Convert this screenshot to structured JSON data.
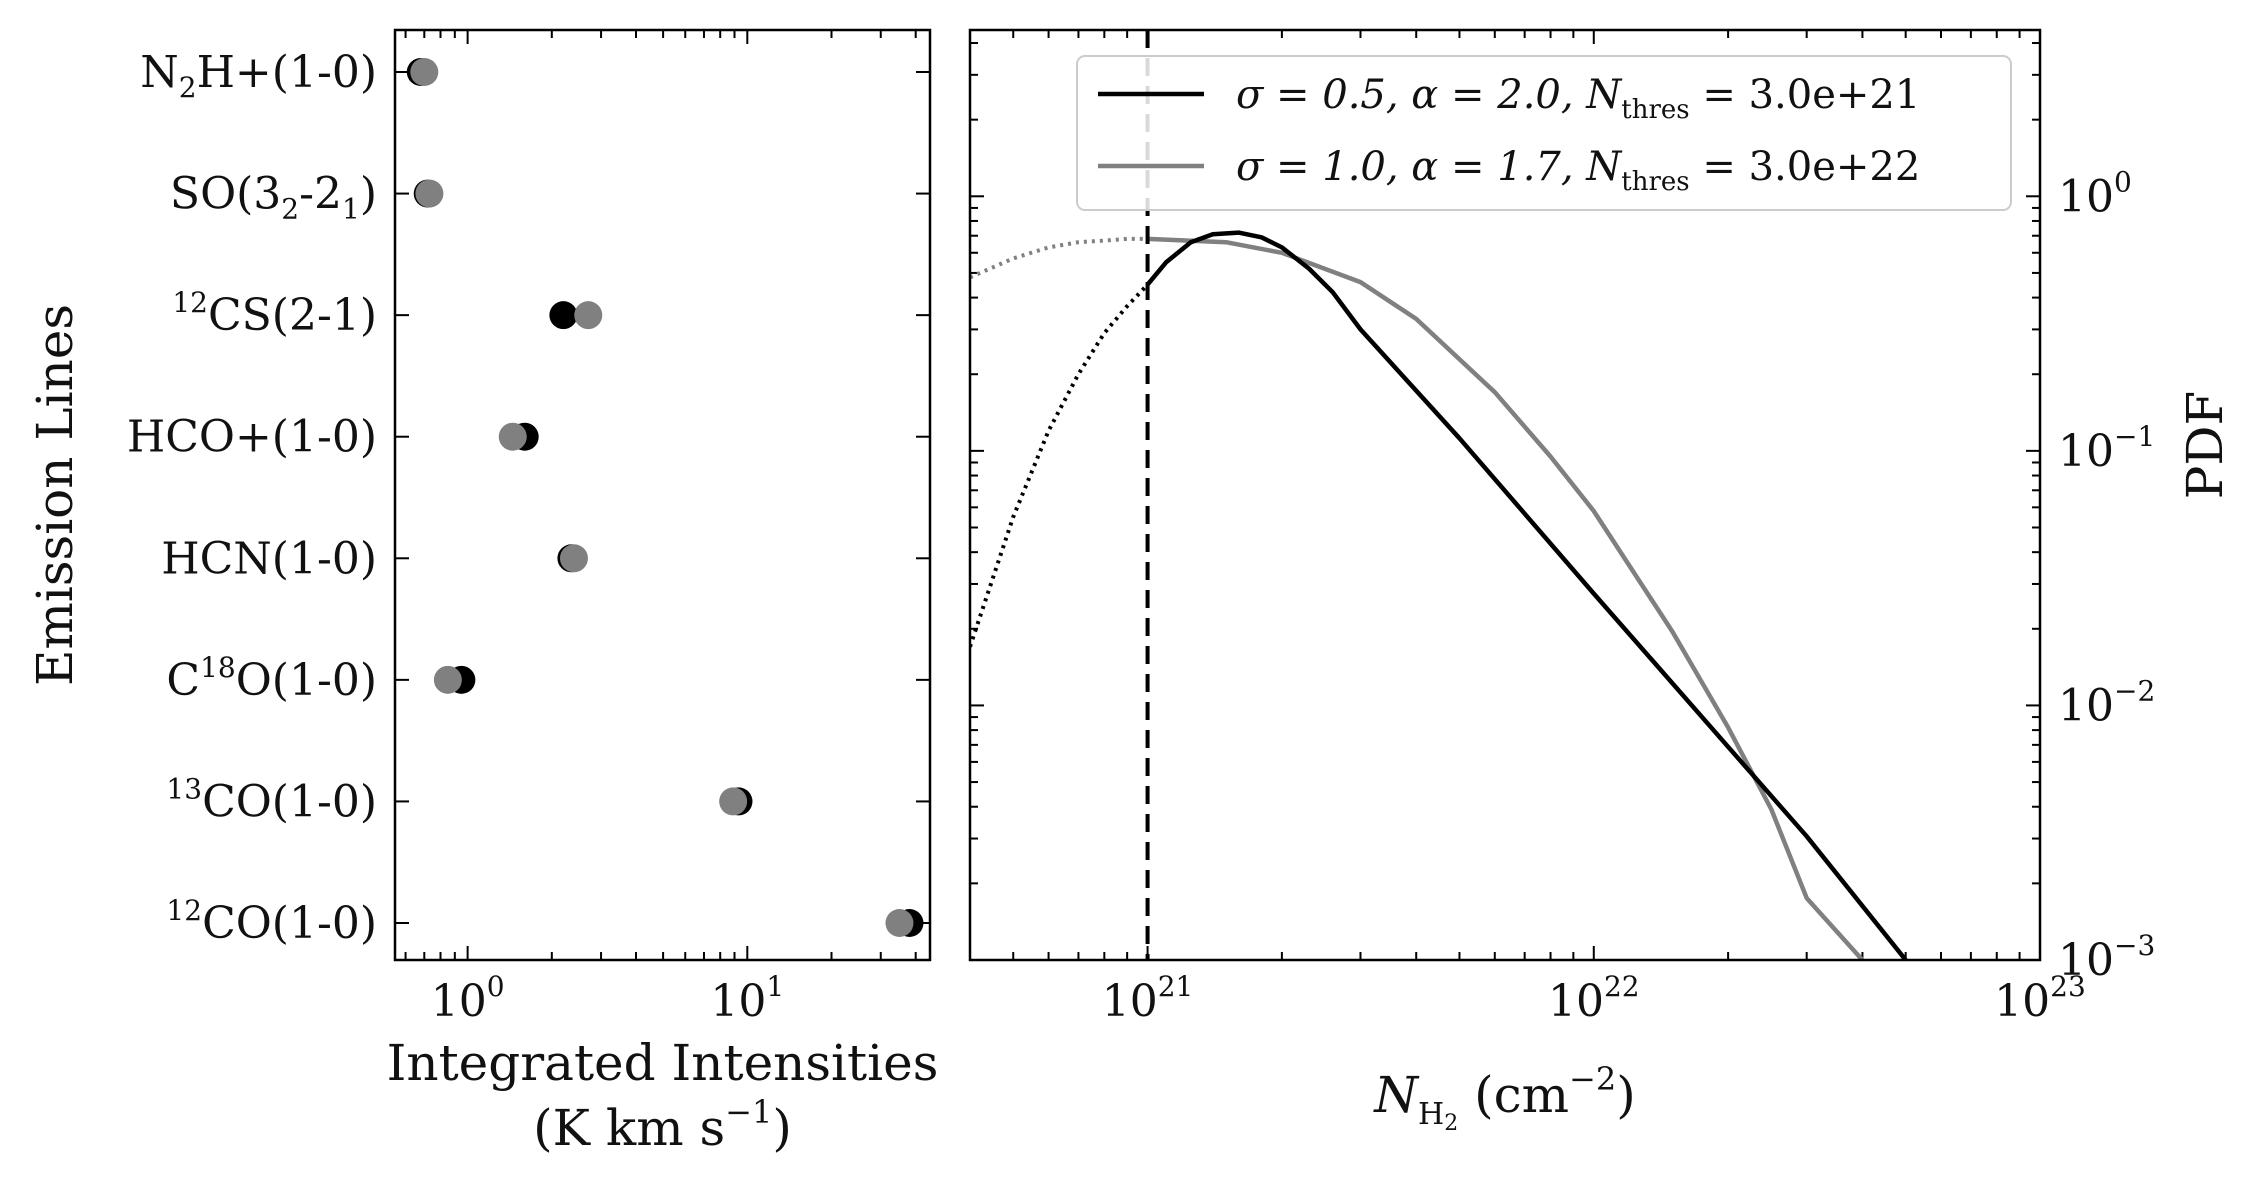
{
  "chart_data": [
    {
      "type": "scatter",
      "xlabel_line1": "Integrated Intensities",
      "xlabel_line2": "(K km s",
      "xlabel_line2_sup": "−1",
      "xlabel_line2_end": ")",
      "ylabel": "Emission Lines",
      "xscale": "log",
      "xlim": [
        0.55,
        45
      ],
      "xticks": [
        {
          "value": 1,
          "base": "10",
          "exp": "0"
        },
        {
          "value": 10,
          "base": "10",
          "exp": "1"
        }
      ],
      "categories": [
        {
          "main": "N",
          "sub": "2",
          "rest": "H+(1-0)"
        },
        {
          "main": "SO(3",
          "sub": "2",
          "rest": "-2",
          "sub2": "1",
          "rest2": ")"
        },
        {
          "sup": "12",
          "main": "CS(2-1)"
        },
        {
          "main": "HCO+(1-0)"
        },
        {
          "main": "HCN(1-0)"
        },
        {
          "main": "C",
          "sup_mid": "18",
          "rest": "O(1-0)"
        },
        {
          "sup": "13",
          "main": "CO(1-0)"
        },
        {
          "sup": "12",
          "main": "CO(1-0)"
        }
      ],
      "series": [
        {
          "color": "#000000",
          "values": [
            0.68,
            0.72,
            2.2,
            1.6,
            2.35,
            0.95,
            9.3,
            38
          ]
        },
        {
          "color": "#808080",
          "values": [
            0.7,
            0.73,
            2.7,
            1.45,
            2.4,
            0.85,
            8.9,
            35
          ]
        }
      ]
    },
    {
      "type": "line",
      "xlabel": "N",
      "xlabel_sub": "H",
      "xlabel_subsub": "2",
      "xlabel_unit": "(cm",
      "xlabel_unit_sup": "−2",
      "xlabel_unit_end": ")",
      "ylabel": "PDF",
      "xscale": "log",
      "yscale": "log",
      "xlim": [
        4e+20,
        1e+23
      ],
      "ylim": [
        0.001,
        4.5
      ],
      "xticks": [
        {
          "value": 1e+21,
          "base": "10",
          "exp": "21"
        },
        {
          "value": 1e+22,
          "base": "10",
          "exp": "22"
        },
        {
          "value": 1e+23,
          "base": "10",
          "exp": "23"
        }
      ],
      "yticks": [
        {
          "value": 1,
          "base": "10",
          "exp": "0"
        },
        {
          "value": 0.1,
          "base": "10",
          "exp": "−1"
        },
        {
          "value": 0.01,
          "base": "10",
          "exp": "−2"
        },
        {
          "value": 0.001,
          "base": "10",
          "exp": "−3"
        }
      ],
      "threshold_line_x": 1e+21,
      "legend_position": "upper right",
      "series": [
        {
          "color": "#000000",
          "legend": {
            "sigma": "σ = 0.5, ",
            "alpha": "α = 2.0, ",
            "n": "N",
            "sub": "thres",
            "val": " = 3.0e+21"
          },
          "dotted": {
            "x": [
              4e+20,
              5e+20,
              6e+20,
              7e+20,
              8e+20,
              9e+20,
              1e+21
            ],
            "y": [
              0.017,
              0.055,
              0.12,
              0.2,
              0.29,
              0.37,
              0.45
            ]
          },
          "solid": {
            "x": [
              1e+21,
              1.1e+21,
              1.25e+21,
              1.4e+21,
              1.6e+21,
              1.8e+21,
              2e+21,
              2.3e+21,
              2.6e+21,
              3e+21,
              5e+21,
              1e+22,
              2e+22,
              3e+22,
              5e+22
            ],
            "y": [
              0.45,
              0.55,
              0.66,
              0.71,
              0.72,
              0.69,
              0.63,
              0.52,
              0.42,
              0.3,
              0.112,
              0.0275,
              0.00688,
              0.00306,
              0.001
            ]
          }
        },
        {
          "color": "#808080",
          "legend": {
            "sigma": "σ = 1.0, ",
            "alpha": "α = 1.7, ",
            "n": "N",
            "sub": "thres",
            "val": " = 3.0e+22"
          },
          "dotted": {
            "x": [
              4e+20,
              5e+20,
              6e+20,
              7e+20,
              8e+20,
              9e+20,
              1e+21
            ],
            "y": [
              0.48,
              0.57,
              0.63,
              0.66,
              0.67,
              0.68,
              0.68
            ]
          },
          "solid": {
            "x": [
              1e+21,
              1.5e+21,
              2e+21,
              3e+21,
              4e+21,
              6e+21,
              8e+21,
              1e+22,
              1.5e+22,
              2e+22,
              2.5e+22,
              3e+22,
              4e+22
            ],
            "y": [
              0.68,
              0.66,
              0.6,
              0.46,
              0.33,
              0.17,
              0.095,
              0.058,
              0.0195,
              0.0082,
              0.0039,
              0.00175,
              0.001
            ]
          }
        }
      ]
    }
  ]
}
